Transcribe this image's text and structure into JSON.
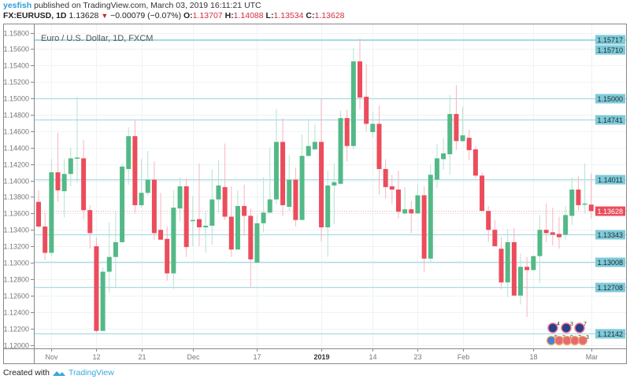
{
  "header": {
    "user": "yesfish",
    "published": "published on TradingView.com, March 03, 2019 16:11:21 UTC",
    "symbol": "FX:EURUSD, 1D",
    "last": "1.13628",
    "change": "−0.00079 (−0.07%)",
    "o_label": "O:",
    "o": "1.13707",
    "h_label": "H:",
    "h": "1.14088",
    "l_label": "L:",
    "l": "1.13534",
    "c_label": "C:",
    "c": "1.13628",
    "direction_icon": "triangle-down-icon"
  },
  "footer": {
    "created_with": "Created with",
    "brand": "TradingView"
  },
  "chart_data": {
    "type": "candlestick",
    "title": "Euro / U.S. Dollar, 1D, FXCM",
    "ylim": [
      1.12,
      1.158
    ],
    "y_ticks": [
      "1.15800",
      "1.15600",
      "1.15400",
      "1.15200",
      "1.15000",
      "1.14800",
      "1.14600",
      "1.14400",
      "1.14200",
      "1.14000",
      "1.13800",
      "1.13600",
      "1.13400",
      "1.13200",
      "1.13000",
      "1.12800",
      "1.12600",
      "1.12400",
      "1.12200",
      "1.12000"
    ],
    "x_ticks": [
      {
        "label": "Nov",
        "index": 2
      },
      {
        "label": "12",
        "index": 9
      },
      {
        "label": "21",
        "index": 16
      },
      {
        "label": "Dec",
        "index": 24
      },
      {
        "label": "17",
        "index": 34
      },
      {
        "label": "2019",
        "index": 44,
        "bold": true
      },
      {
        "label": "14",
        "index": 52
      },
      {
        "label": "23",
        "index": 59
      },
      {
        "label": "Feb",
        "index": 66
      },
      {
        "label": "18",
        "index": 77
      },
      {
        "label": "Mar",
        "index": 86
      }
    ],
    "price_lines": [
      "1.15717",
      "1.15710",
      "1.15000",
      "1.14741",
      "1.14011",
      "1.13343",
      "1.13008",
      "1.12708",
      "1.12142"
    ],
    "current_price": "1.13628",
    "ohlc": [
      [
        1.1374,
        1.1388,
        1.1342,
        1.1344
      ],
      [
        1.1344,
        1.1361,
        1.1303,
        1.1312
      ],
      [
        1.1312,
        1.1426,
        1.1308,
        1.141
      ],
      [
        1.141,
        1.1458,
        1.1374,
        1.1388
      ],
      [
        1.1387,
        1.1426,
        1.1355,
        1.1408
      ],
      [
        1.1408,
        1.144,
        1.1393,
        1.1427
      ],
      [
        1.1427,
        1.1502,
        1.1397,
        1.1428
      ],
      [
        1.1427,
        1.1449,
        1.1353,
        1.1364
      ],
      [
        1.1364,
        1.137,
        1.1317,
        1.1336
      ],
      [
        1.132,
        1.1331,
        1.1215,
        1.1217
      ],
      [
        1.1217,
        1.1294,
        1.1217,
        1.1289
      ],
      [
        1.1289,
        1.1349,
        1.1264,
        1.1307
      ],
      [
        1.1307,
        1.1363,
        1.127,
        1.1325
      ],
      [
        1.1325,
        1.1421,
        1.1324,
        1.1417
      ],
      [
        1.1414,
        1.1465,
        1.1395,
        1.1454
      ],
      [
        1.1454,
        1.1474,
        1.136,
        1.137
      ],
      [
        1.137,
        1.1426,
        1.1367,
        1.1385
      ],
      [
        1.1385,
        1.1436,
        1.1382,
        1.1401
      ],
      [
        1.1401,
        1.1423,
        1.1328,
        1.1336
      ],
      [
        1.134,
        1.1385,
        1.1328,
        1.1328
      ],
      [
        1.1329,
        1.1344,
        1.1278,
        1.1287
      ],
      [
        1.1287,
        1.1388,
        1.1268,
        1.1367
      ],
      [
        1.1366,
        1.1404,
        1.135,
        1.1393
      ],
      [
        1.1393,
        1.1403,
        1.1307,
        1.1319
      ],
      [
        1.1351,
        1.1381,
        1.132,
        1.1352
      ],
      [
        1.1353,
        1.1421,
        1.132,
        1.1343
      ],
      [
        1.1343,
        1.1362,
        1.1312,
        1.1345
      ],
      [
        1.1345,
        1.1413,
        1.1322,
        1.1377
      ],
      [
        1.1377,
        1.1425,
        1.1361,
        1.1394
      ],
      [
        1.1392,
        1.1445,
        1.1352,
        1.1356
      ],
      [
        1.1356,
        1.1393,
        1.1307,
        1.1316
      ],
      [
        1.1316,
        1.1388,
        1.1316,
        1.1369
      ],
      [
        1.1369,
        1.1395,
        1.1333,
        1.1357
      ],
      [
        1.1357,
        1.1366,
        1.127,
        1.1304
      ],
      [
        1.13,
        1.1358,
        1.13,
        1.1348
      ],
      [
        1.1348,
        1.1404,
        1.1337,
        1.1361
      ],
      [
        1.1361,
        1.144,
        1.136,
        1.1377
      ],
      [
        1.1377,
        1.1487,
        1.1371,
        1.1447
      ],
      [
        1.1447,
        1.1476,
        1.1357,
        1.137
      ],
      [
        1.1368,
        1.1431,
        1.1363,
        1.1401
      ],
      [
        1.1401,
        1.1416,
        1.1344,
        1.1352
      ],
      [
        1.1352,
        1.1456,
        1.1352,
        1.143
      ],
      [
        1.143,
        1.1475,
        1.1429,
        1.1442
      ],
      [
        1.1438,
        1.1468,
        1.1437,
        1.1447
      ],
      [
        1.1447,
        1.1499,
        1.1326,
        1.1343
      ],
      [
        1.1343,
        1.1412,
        1.1307,
        1.1394
      ],
      [
        1.1394,
        1.1421,
        1.1347,
        1.1398
      ],
      [
        1.1396,
        1.1485,
        1.1396,
        1.1476
      ],
      [
        1.1476,
        1.1486,
        1.1423,
        1.1442
      ],
      [
        1.1442,
        1.1561,
        1.1438,
        1.1545
      ],
      [
        1.1545,
        1.1573,
        1.1487,
        1.1501
      ],
      [
        1.1502,
        1.1542,
        1.146,
        1.1469
      ],
      [
        1.1459,
        1.1484,
        1.1452,
        1.1469
      ],
      [
        1.1469,
        1.1491,
        1.1383,
        1.1414
      ],
      [
        1.1414,
        1.1426,
        1.1378,
        1.1392
      ],
      [
        1.1393,
        1.1407,
        1.1371,
        1.1389
      ],
      [
        1.1389,
        1.1412,
        1.1354,
        1.1362
      ],
      [
        1.136,
        1.1392,
        1.1358,
        1.1365
      ],
      [
        1.1365,
        1.1375,
        1.1336,
        1.136
      ],
      [
        1.136,
        1.1396,
        1.136,
        1.1382
      ],
      [
        1.1382,
        1.1393,
        1.1289,
        1.1305
      ],
      [
        1.1305,
        1.1419,
        1.13,
        1.1407
      ],
      [
        1.1401,
        1.1445,
        1.1391,
        1.1427
      ],
      [
        1.1426,
        1.1452,
        1.1413,
        1.1433
      ],
      [
        1.1432,
        1.1504,
        1.1407,
        1.1481
      ],
      [
        1.1481,
        1.1516,
        1.1437,
        1.1448
      ],
      [
        1.1448,
        1.149,
        1.1447,
        1.1455
      ],
      [
        1.1452,
        1.1462,
        1.1425,
        1.1437
      ],
      [
        1.1438,
        1.1442,
        1.1403,
        1.1406
      ],
      [
        1.1406,
        1.141,
        1.1363,
        1.1363
      ],
      [
        1.1363,
        1.1369,
        1.1325,
        1.134
      ],
      [
        1.134,
        1.1352,
        1.132,
        1.132
      ],
      [
        1.1317,
        1.1331,
        1.1268,
        1.1276
      ],
      [
        1.1276,
        1.1341,
        1.1258,
        1.1325
      ],
      [
        1.1325,
        1.1342,
        1.126,
        1.126
      ],
      [
        1.126,
        1.1311,
        1.1249,
        1.1295
      ],
      [
        1.1295,
        1.1307,
        1.1234,
        1.1291
      ],
      [
        1.1291,
        1.1308,
        1.1291,
        1.1308
      ],
      [
        1.1308,
        1.1358,
        1.1275,
        1.134
      ],
      [
        1.134,
        1.1372,
        1.1325,
        1.1336
      ],
      [
        1.1337,
        1.1367,
        1.1321,
        1.1334
      ],
      [
        1.1335,
        1.1356,
        1.1317,
        1.1331
      ],
      [
        1.1334,
        1.1369,
        1.1328,
        1.1358
      ],
      [
        1.1357,
        1.1404,
        1.1346,
        1.1389
      ],
      [
        1.1389,
        1.1405,
        1.1364,
        1.137
      ],
      [
        1.1371,
        1.1421,
        1.136,
        1.1372
      ],
      [
        1.13707,
        1.14088,
        1.13534,
        1.13628
      ]
    ],
    "events_top": [
      "4",
      "3",
      "7"
    ],
    "events_bottom": [
      "5",
      "3",
      "9",
      "7",
      "3"
    ],
    "grid": true
  },
  "colors": {
    "up": "#53b987",
    "down": "#eb4d5c",
    "up_wick": "#b6e3cc",
    "down_wick": "#f7b5bc",
    "price_line": "#a9dbe5",
    "price_label": "#7fcad8",
    "current_label": "#eb4d5c",
    "grid": "#eef3f6",
    "axis": "#888888"
  }
}
